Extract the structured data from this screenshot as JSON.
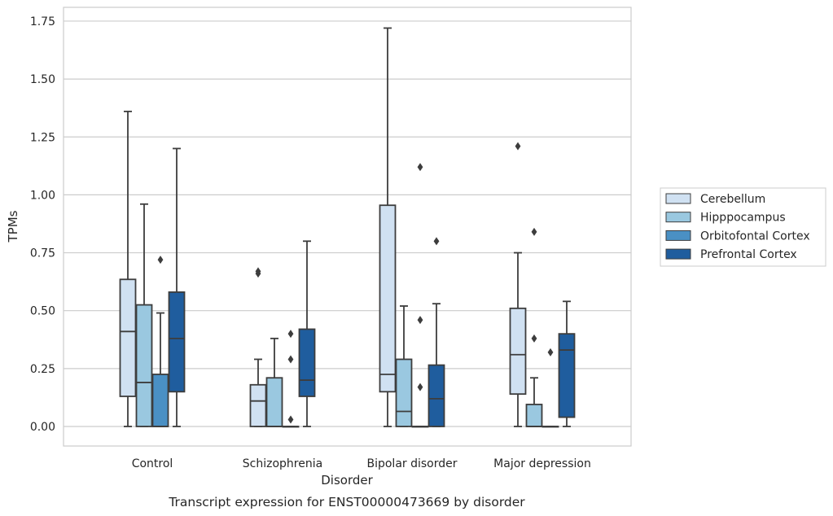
{
  "chart_data": {
    "type": "box",
    "title": "",
    "caption": "Transcript expression for ENST00000473669 by disorder",
    "xlabel": "Disorder",
    "ylabel": "TPMs",
    "ylim": [
      -0.08,
      1.81
    ],
    "yticks": [
      0.0,
      0.25,
      0.5,
      0.75,
      1.0,
      1.25,
      1.5,
      1.75
    ],
    "ytick_labels": [
      "0.00",
      "0.25",
      "0.50",
      "0.75",
      "1.00",
      "1.25",
      "1.50",
      "1.75"
    ],
    "grid": "horizontal",
    "legend_position": "right",
    "categories": [
      "Control",
      "Schizophrenia",
      "Bipolar disorder",
      "Major depression"
    ],
    "series": [
      {
        "name": "Cerebellum",
        "color": "#d0e1f2",
        "boxes": [
          {
            "whislo": 0.0,
            "q1": 0.13,
            "med": 0.41,
            "q3": 0.635,
            "whishi": 1.36,
            "fliers": []
          },
          {
            "whislo": 0.0,
            "q1": 0.0,
            "med": 0.11,
            "q3": 0.18,
            "whishi": 0.29,
            "fliers": [
              0.66,
              0.67
            ]
          },
          {
            "whislo": 0.0,
            "q1": 0.15,
            "med": 0.225,
            "q3": 0.955,
            "whishi": 1.72,
            "fliers": []
          },
          {
            "whislo": 0.0,
            "q1": 0.14,
            "med": 0.31,
            "q3": 0.51,
            "whishi": 0.75,
            "fliers": [
              1.21
            ]
          }
        ]
      },
      {
        "name": "Hipppocampus",
        "color": "#9ac8e0",
        "boxes": [
          {
            "whislo": 0.0,
            "q1": 0.0,
            "med": 0.19,
            "q3": 0.525,
            "whishi": 0.96,
            "fliers": []
          },
          {
            "whislo": 0.0,
            "q1": 0.0,
            "med": 0.0,
            "q3": 0.21,
            "whishi": 0.38,
            "fliers": []
          },
          {
            "whislo": 0.0,
            "q1": 0.0,
            "med": 0.065,
            "q3": 0.29,
            "whishi": 0.52,
            "fliers": []
          },
          {
            "whislo": 0.0,
            "q1": 0.0,
            "med": 0.0,
            "q3": 0.095,
            "whishi": 0.21,
            "fliers": [
              0.38,
              0.84
            ]
          }
        ]
      },
      {
        "name": "Orbitofontal Cortex",
        "color": "#4a90c4",
        "boxes": [
          {
            "whislo": 0.0,
            "q1": 0.0,
            "med": 0.0,
            "q3": 0.225,
            "whishi": 0.49,
            "fliers": [
              0.72
            ]
          },
          {
            "whislo": 0.0,
            "q1": 0.0,
            "med": 0.0,
            "q3": 0.0,
            "whishi": 0.0,
            "fliers": [
              0.03,
              0.29,
              0.4
            ]
          },
          {
            "whislo": 0.0,
            "q1": 0.0,
            "med": 0.0,
            "q3": 0.0,
            "whishi": 0.0,
            "fliers": [
              0.17,
              0.46,
              1.12
            ]
          },
          {
            "whislo": 0.0,
            "q1": 0.0,
            "med": 0.0,
            "q3": 0.0,
            "whishi": 0.0,
            "fliers": [
              0.32
            ]
          }
        ]
      },
      {
        "name": "Prefrontal Cortex",
        "color": "#1f5d9e",
        "boxes": [
          {
            "whislo": 0.0,
            "q1": 0.15,
            "med": 0.38,
            "q3": 0.58,
            "whishi": 1.2,
            "fliers": []
          },
          {
            "whislo": 0.0,
            "q1": 0.13,
            "med": 0.2,
            "q3": 0.42,
            "whishi": 0.8,
            "fliers": []
          },
          {
            "whislo": 0.0,
            "q1": 0.0,
            "med": 0.12,
            "q3": 0.265,
            "whishi": 0.53,
            "fliers": [
              0.8
            ]
          },
          {
            "whislo": 0.0,
            "q1": 0.04,
            "med": 0.33,
            "q3": 0.4,
            "whishi": 0.54,
            "fliers": []
          }
        ]
      }
    ]
  }
}
